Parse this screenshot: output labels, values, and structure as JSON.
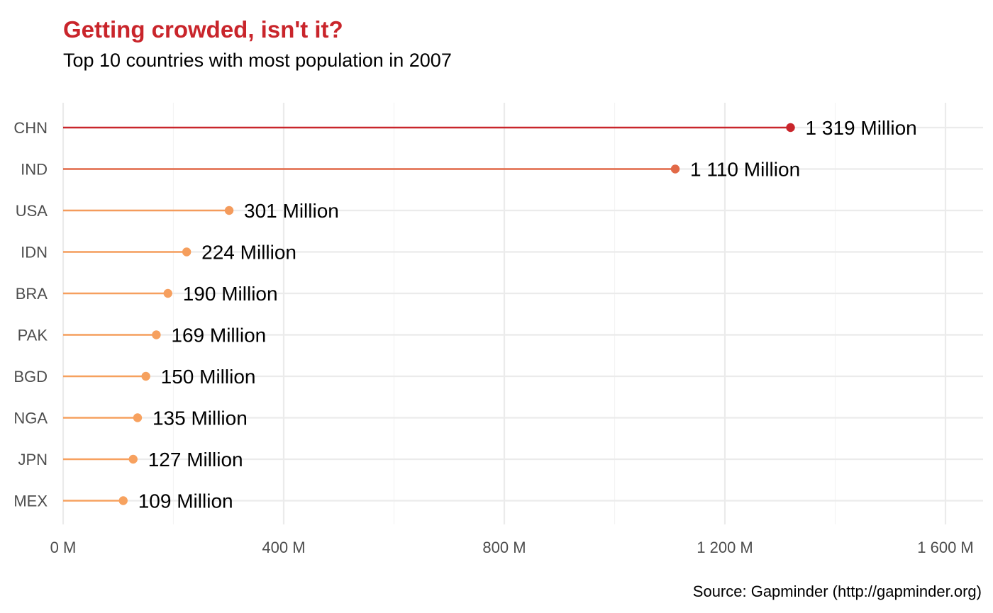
{
  "chart_data": {
    "type": "lollipop",
    "title": "Getting crowded, isn't it?",
    "subtitle": "Top 10 countries with most population in 2007",
    "caption": "Source: Gapminder (http://gapminder.org)",
    "xlabel": "",
    "ylabel": "",
    "orientation": "horizontal",
    "categories": [
      "CHN",
      "IND",
      "USA",
      "IDN",
      "BRA",
      "PAK",
      "BGD",
      "NGA",
      "JPN",
      "MEX"
    ],
    "values": [
      1319,
      1110,
      301,
      224,
      190,
      169,
      150,
      135,
      127,
      109
    ],
    "value_unit": "Million",
    "data_labels": [
      "1 319 Million",
      "1 110 Million",
      "301 Million",
      "224 Million",
      "190 Million",
      "169 Million",
      "150 Million",
      "135 Million",
      "127 Million",
      "109 Million"
    ],
    "xlim": [
      0,
      1660
    ],
    "x_ticks": [
      0,
      400,
      800,
      1200,
      1600
    ],
    "x_tick_labels": [
      "0 M",
      "400 M",
      "800 M",
      "1 200 M",
      "1 600 M"
    ],
    "grid": true,
    "legend": "none",
    "colors": {
      "title": "#c9252b",
      "high": "#c9252b",
      "low": "#f7a25f",
      "grid": "#ebebeb"
    }
  }
}
